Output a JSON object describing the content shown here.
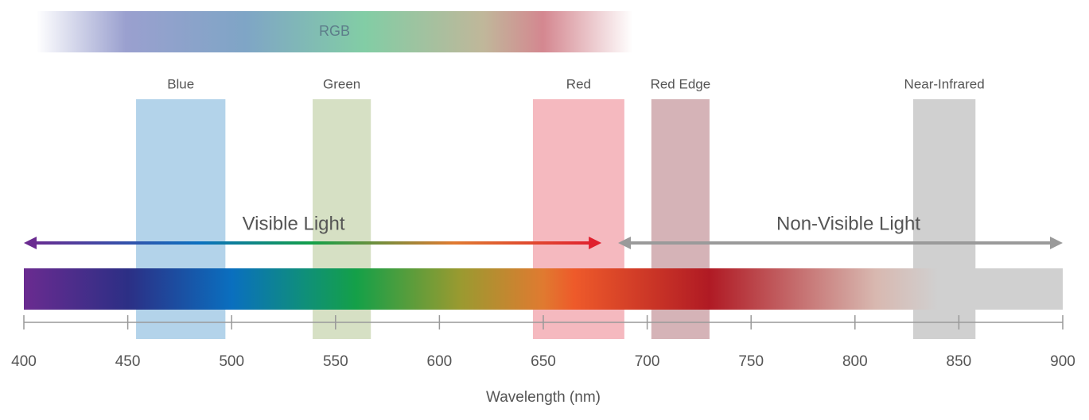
{
  "chart_data": {
    "type": "range",
    "xlabel": "Wavelength (nm)",
    "xlim": [
      400,
      900
    ],
    "xticks": [
      400,
      450,
      500,
      550,
      600,
      650,
      700,
      750,
      800,
      850,
      900
    ],
    "rgb": {
      "label": "RGB",
      "range": [
        406,
        693
      ]
    },
    "bands": [
      {
        "name": "Blue",
        "range": [
          454,
          497
        ],
        "color": "#b3d3ea"
      },
      {
        "name": "Green",
        "range": [
          539,
          567
        ],
        "color": "#d6e0c4"
      },
      {
        "name": "Red",
        "range": [
          645,
          689
        ],
        "color": "#f5b9bf"
      },
      {
        "name": "Red Edge",
        "range": [
          702,
          730
        ],
        "color": "#d5b3b7"
      },
      {
        "name": "Near-Infrared",
        "range": [
          828,
          858
        ],
        "color": "#d0d0d0"
      }
    ],
    "regions": [
      {
        "name": "Visible Light",
        "range": [
          400,
          678
        ],
        "color": "url(#visGrad)"
      },
      {
        "name": "Non-Visible Light",
        "range": [
          686,
          900
        ],
        "color": "#9a9a9a"
      }
    ]
  }
}
